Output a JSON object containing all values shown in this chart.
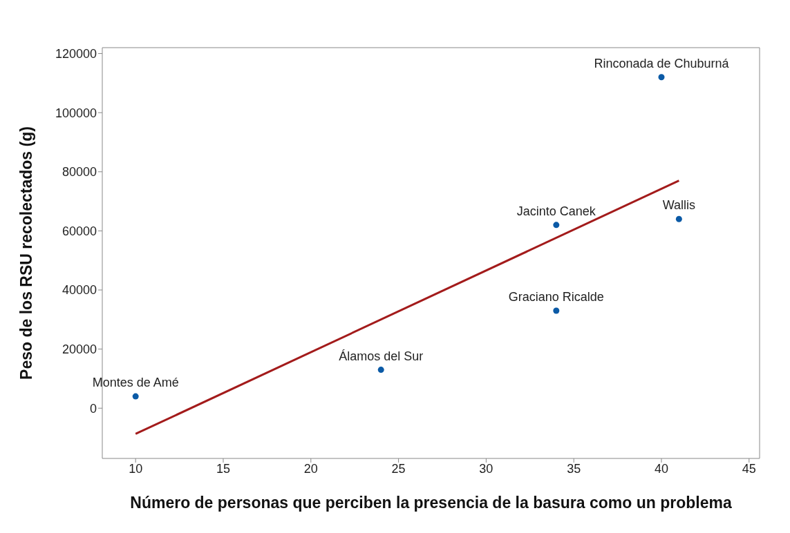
{
  "chart_data": {
    "type": "scatter",
    "xlabel": "Número de personas que perciben la presencia de la basura como un problema",
    "ylabel": "Peso de los RSU recolectados (g)",
    "series": [
      {
        "color": "#0b5aa6",
        "marker": "circle",
        "x": [
          10,
          24,
          34,
          34,
          40,
          41
        ],
        "values": [
          4000,
          13000,
          33000,
          62000,
          112000,
          64000
        ]
      },
      {
        "type": "line",
        "color": "#a31b1b",
        "marker": "none",
        "x": [
          10,
          41
        ],
        "values": [
          -8700,
          77000
        ]
      }
    ],
    "xlim": [
      8.1,
      45.6
    ],
    "xticks": [
      10,
      15,
      20,
      25,
      30,
      35,
      40,
      45
    ],
    "ylim": [
      -17000,
      122000
    ],
    "yticks": [
      0,
      20000,
      40000,
      60000,
      80000,
      100000,
      120000
    ],
    "grid": false,
    "legend": false,
    "line_style": "solid",
    "annotations": [
      {
        "text": "Montes de Amé",
        "x": 10,
        "y": 4000
      },
      {
        "text": "Álamos del Sur",
        "x": 24,
        "y": 13000
      },
      {
        "text": "Graciano Ricalde",
        "x": 34,
        "y": 33000
      },
      {
        "text": "Jacinto Canek",
        "x": 34,
        "y": 62000
      },
      {
        "text": "Rinconada de Chuburná",
        "x": 40,
        "y": 112000
      },
      {
        "text": "Wallis",
        "x": 41,
        "y": 64000
      }
    ]
  }
}
